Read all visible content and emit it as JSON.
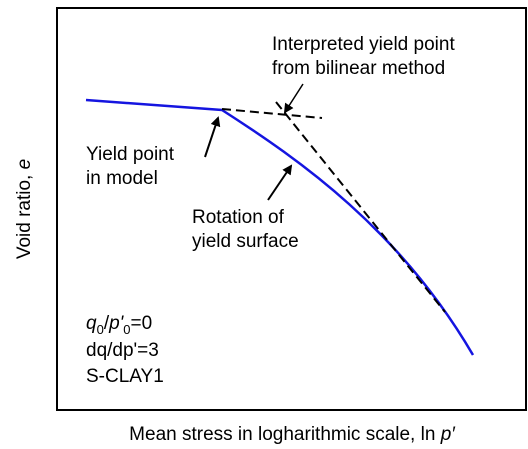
{
  "annotations": {
    "bilinear": [
      "Interpreted yield point",
      "from bilinear method"
    ],
    "model": [
      "Yield point",
      "in model"
    ],
    "rotation": [
      "Rotation of",
      "yield surface"
    ],
    "params": {
      "ratio": [
        "q",
        "0",
        "/",
        "p'",
        "0",
        "=0"
      ],
      "slope": "dq/dp'=3",
      "model_name": "S-CLAY1"
    }
  },
  "axes": {
    "y_label": [
      "Void ratio, ",
      "e"
    ],
    "x_label": [
      "Mean stress in logharithmic scale, ln ",
      "p′"
    ]
  }
}
